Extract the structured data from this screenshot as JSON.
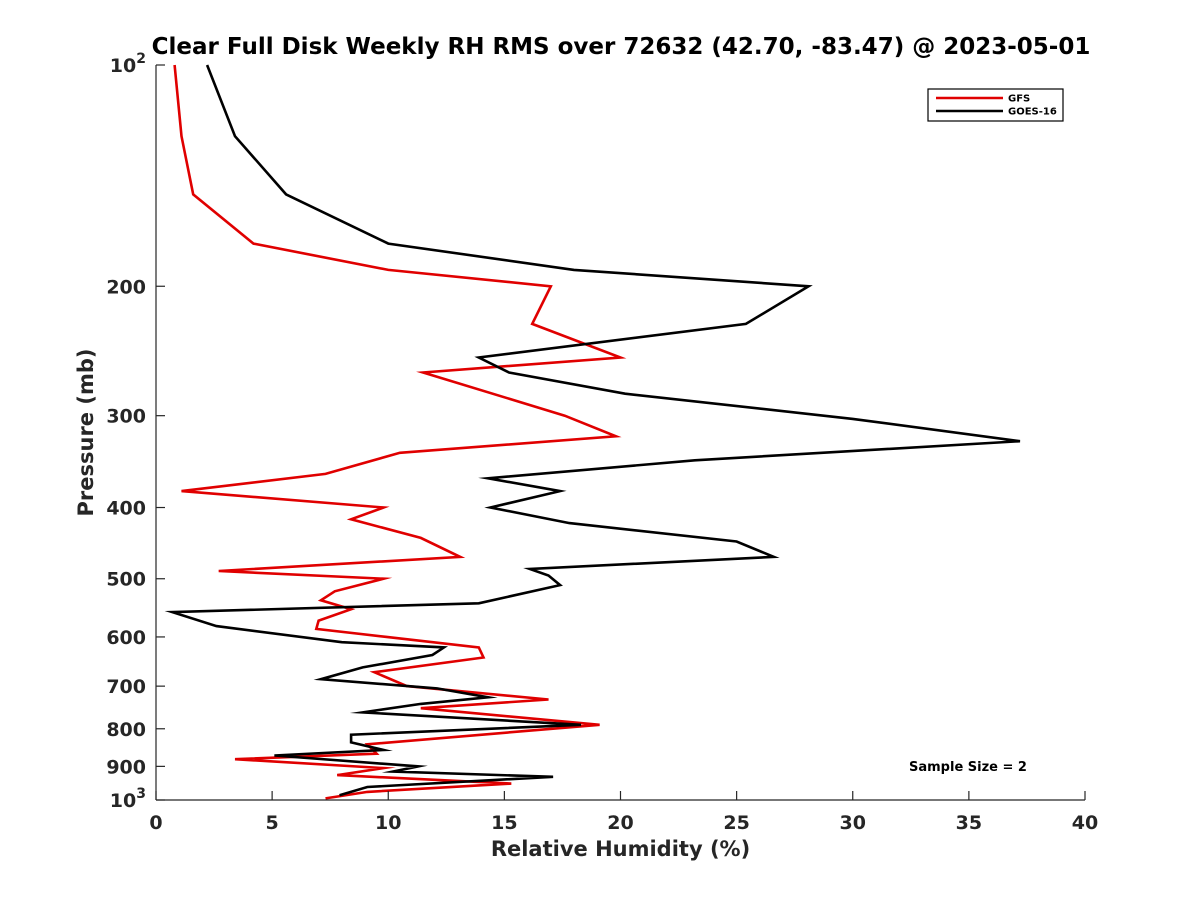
{
  "chart_data": {
    "type": "line",
    "title": "Clear Full Disk Weekly RH RMS over 72632 (42.70, -83.47) @ 2023-05-01",
    "xlabel": "Relative Humidity (%)",
    "ylabel": "Pressure (mb)",
    "xlim": [
      0,
      40
    ],
    "ylim": [
      100,
      1000
    ],
    "y_scale": "log",
    "y_reversed": true,
    "grid": false,
    "legend_position": "top-right",
    "x_ticks": [
      0,
      5,
      10,
      15,
      20,
      25,
      30,
      35,
      40
    ],
    "y_ticks": [
      {
        "value": 100,
        "base": "10",
        "exp": "2"
      },
      {
        "value": 200,
        "label": "200"
      },
      {
        "value": 300,
        "label": "300"
      },
      {
        "value": 400,
        "label": "400"
      },
      {
        "value": 500,
        "label": "500"
      },
      {
        "value": 600,
        "label": "600"
      },
      {
        "value": 700,
        "label": "700"
      },
      {
        "value": 800,
        "label": "800"
      },
      {
        "value": 900,
        "label": "900"
      },
      {
        "value": 1000,
        "base": "10",
        "exp": "3"
      }
    ],
    "annotation": "Sample Size = 2",
    "series": [
      {
        "name": "GFS",
        "color": "#e00000",
        "points": [
          [
            0.8,
            100
          ],
          [
            1.1,
            125
          ],
          [
            1.6,
            150
          ],
          [
            4.2,
            175
          ],
          [
            10.0,
            190
          ],
          [
            17.0,
            200
          ],
          [
            16.2,
            225
          ],
          [
            20.0,
            250
          ],
          [
            11.5,
            262
          ],
          [
            17.6,
            300
          ],
          [
            19.8,
            320
          ],
          [
            10.5,
            337
          ],
          [
            7.3,
            360
          ],
          [
            1.1,
            380
          ],
          [
            9.8,
            400
          ],
          [
            8.4,
            415
          ],
          [
            11.4,
            440
          ],
          [
            13.1,
            467
          ],
          [
            2.7,
            488
          ],
          [
            9.8,
            500
          ],
          [
            7.7,
            520
          ],
          [
            7.1,
            535
          ],
          [
            8.4,
            550
          ],
          [
            7.0,
            570
          ],
          [
            6.9,
            585
          ],
          [
            13.9,
            620
          ],
          [
            14.1,
            640
          ],
          [
            9.4,
            670
          ],
          [
            10.8,
            700
          ],
          [
            16.9,
            730
          ],
          [
            11.4,
            750
          ],
          [
            19.1,
            790
          ],
          [
            9.1,
            840
          ],
          [
            9.5,
            865
          ],
          [
            3.4,
            880
          ],
          [
            9.8,
            905
          ],
          [
            7.8,
            925
          ],
          [
            15.3,
            950
          ],
          [
            9.1,
            975
          ],
          [
            7.3,
            995
          ]
        ]
      },
      {
        "name": "GOES-16",
        "color": "#000000",
        "points": [
          [
            2.2,
            100
          ],
          [
            3.4,
            125
          ],
          [
            5.6,
            150
          ],
          [
            10.0,
            175
          ],
          [
            18.0,
            190
          ],
          [
            28.1,
            200
          ],
          [
            25.4,
            225
          ],
          [
            13.9,
            250
          ],
          [
            15.2,
            262
          ],
          [
            20.2,
            280
          ],
          [
            30.0,
            303
          ],
          [
            37.2,
            325
          ],
          [
            23.2,
            345
          ],
          [
            14.3,
            365
          ],
          [
            17.4,
            380
          ],
          [
            14.4,
            400
          ],
          [
            17.8,
            420
          ],
          [
            25.0,
            445
          ],
          [
            26.6,
            467
          ],
          [
            16.1,
            485
          ],
          [
            16.9,
            495
          ],
          [
            17.4,
            510
          ],
          [
            13.9,
            540
          ],
          [
            0.7,
            555
          ],
          [
            2.6,
            580
          ],
          [
            8.0,
            610
          ],
          [
            12.4,
            620
          ],
          [
            11.9,
            635
          ],
          [
            8.9,
            660
          ],
          [
            7.1,
            685
          ],
          [
            12.1,
            705
          ],
          [
            14.3,
            725
          ],
          [
            11.4,
            740
          ],
          [
            8.9,
            760
          ],
          [
            18.3,
            790
          ],
          [
            8.4,
            815
          ],
          [
            8.4,
            835
          ],
          [
            9.8,
            855
          ],
          [
            5.1,
            870
          ],
          [
            11.3,
            900
          ],
          [
            10.2,
            915
          ],
          [
            17.1,
            930
          ],
          [
            9.1,
            960
          ],
          [
            7.9,
            985
          ]
        ]
      }
    ]
  }
}
